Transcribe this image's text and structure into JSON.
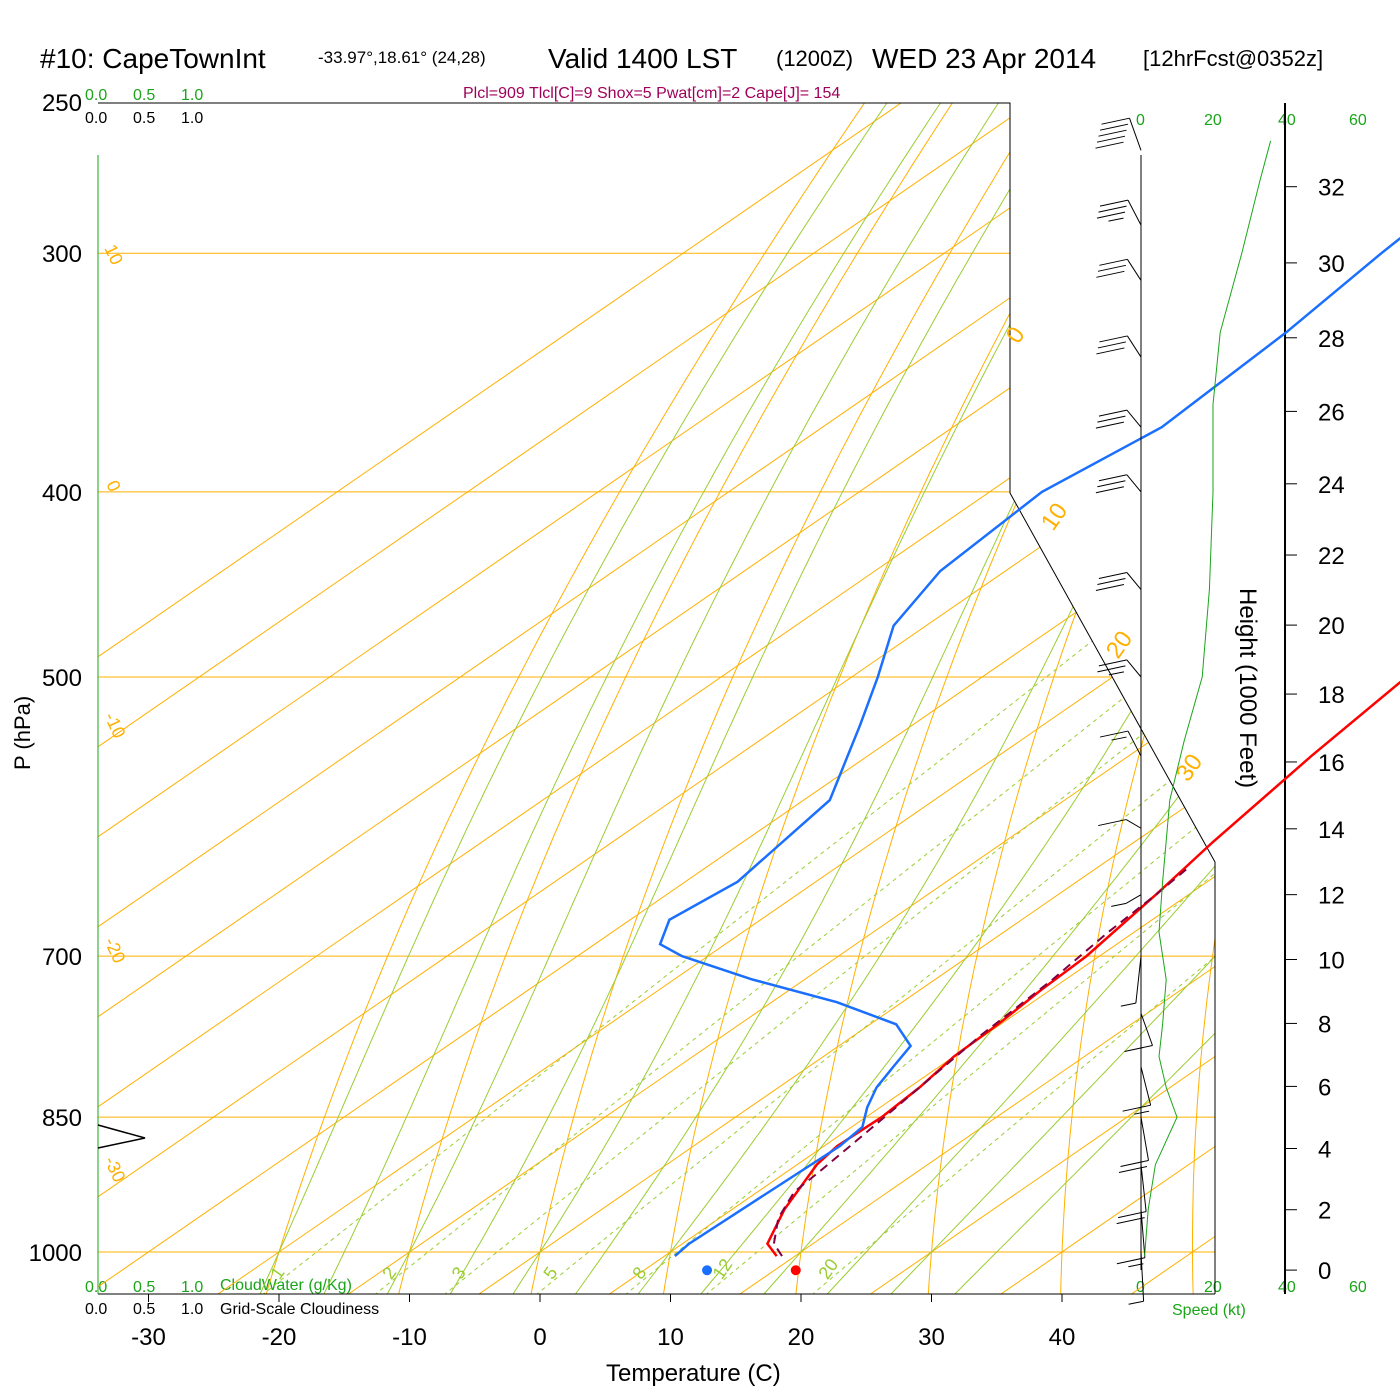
{
  "header": {
    "station": "#10: CapeTownInt",
    "coords": "-33.97°,18.61° (24,28)",
    "valid": "Valid 1400 LST",
    "utc": "(1200Z)",
    "date": "WED 23 Apr 2014",
    "forecast": "[12hrFcst@0352z]",
    "indices": "Plcl=909 Tlcl[C]=9 Shox=5 Pwat[cm]=2 Cape[J]= 154"
  },
  "cloud_scale": {
    "ticks": [
      "0.0",
      "0.5",
      "1.0"
    ],
    "cloudwater_label": "CloudWater (g/Kg)",
    "cloudiness_label": "Grid-Scale Cloudiness"
  },
  "wind_scale": {
    "ticks": [
      "0",
      "20",
      "40",
      "60"
    ],
    "label": "Speed (kt)"
  },
  "colors": {
    "temperature": "#ff0000",
    "dewpoint": "#1a6fff",
    "parcel": "#800040",
    "isotherm": "#ffb000",
    "dry_adiabat": "#ffb000",
    "moist_adiabat": "#9acd32",
    "mixing_ratio": "#9acd32",
    "indices": "#a0005a",
    "speed": "#1aa51a"
  },
  "chart_data": {
    "type": "line",
    "title": "#10: CapeTownInt Valid 1400 LST (1200Z) WED 23 Apr 2014",
    "xlabel": "Temperature (C)",
    "ylabel": "P (hPa)",
    "y2label": "Height (1000 Feet)",
    "xlim": [
      -38,
      44
    ],
    "ylim": [
      1030,
      250
    ],
    "y_scale": "log",
    "skew": "skew-T",
    "x_ticks": [
      "-30",
      "-20",
      "-10",
      "0",
      "10",
      "20",
      "30",
      "40"
    ],
    "p_ticks": [
      "250",
      "300",
      "400",
      "500",
      "700",
      "850",
      "1000"
    ],
    "p_tick_values": [
      250,
      300,
      400,
      500,
      700,
      850,
      1000
    ],
    "height_ticks": [
      "0",
      "2",
      "4",
      "6",
      "8",
      "10",
      "12",
      "14",
      "16",
      "18",
      "20",
      "22",
      "24",
      "26",
      "28",
      "30",
      "32"
    ],
    "isotherm_labels": [
      "10",
      "0",
      "-10",
      "-20",
      "-30",
      "0",
      "10",
      "20",
      "30"
    ],
    "mixing_ratio_labels": [
      "1",
      "2",
      "3",
      "5",
      "8",
      "12",
      "20"
    ],
    "mixing_ratio_values": [
      1,
      2,
      3,
      5,
      8,
      12,
      20
    ],
    "series": [
      {
        "name": "Temperature",
        "points": [
          [
            18.6,
            1005
          ],
          [
            16.5,
            990
          ],
          [
            14,
            950
          ],
          [
            11.5,
            900
          ],
          [
            11,
            880
          ],
          [
            11.2,
            850
          ],
          [
            10.8,
            820
          ],
          [
            10,
            790
          ],
          [
            9.8,
            760
          ],
          [
            9.3,
            730
          ],
          [
            9,
            700
          ],
          [
            7.5,
            650
          ],
          [
            6,
            610
          ],
          [
            4,
            550
          ],
          [
            2.5,
            500
          ],
          [
            0.5,
            450
          ],
          [
            -2,
            400
          ],
          [
            -6.5,
            350
          ],
          [
            -11,
            300
          ],
          [
            -14.5,
            265
          ]
        ]
      },
      {
        "name": "Dewpoint",
        "points": [
          [
            10.8,
            1005
          ],
          [
            10.5,
            990
          ],
          [
            10.8,
            940
          ],
          [
            11.2,
            880
          ],
          [
            10.8,
            860
          ],
          [
            9,
            840
          ],
          [
            7.5,
            820
          ],
          [
            6.5,
            800
          ],
          [
            5.5,
            780
          ],
          [
            2,
            760
          ],
          [
            -5,
            740
          ],
          [
            -14,
            720
          ],
          [
            -22,
            700
          ],
          [
            -25,
            690
          ],
          [
            -27,
            670
          ],
          [
            -26,
            640
          ],
          [
            -28,
            580
          ],
          [
            -34,
            530
          ],
          [
            -38,
            500
          ],
          [
            -42.5,
            470
          ],
          [
            -45,
            440
          ],
          [
            -46,
            400
          ],
          [
            -44,
            370
          ],
          [
            -45,
            330
          ],
          [
            -46.5,
            300
          ],
          [
            -48,
            265
          ]
        ]
      },
      {
        "name": "Parcel",
        "points": [
          [
            19,
            1005
          ],
          [
            17,
            990
          ],
          [
            14.5,
            960
          ],
          [
            12.8,
            930
          ],
          [
            12.5,
            909
          ],
          [
            11.8,
            870
          ],
          [
            10.8,
            820
          ],
          [
            9.7,
            770
          ],
          [
            9,
            720
          ],
          [
            8.5,
            700
          ],
          [
            8,
            680
          ],
          [
            7.5,
            650
          ],
          [
            7,
            630
          ]
        ]
      }
    ],
    "surface": {
      "temperature": 19.6,
      "dewpoint": 12.8
    },
    "isotherm_values": [
      -100,
      -90,
      -80,
      -70,
      -60,
      -50,
      -40,
      -30,
      -20,
      -10,
      0,
      10,
      20,
      30,
      40,
      50
    ],
    "dry_adiabat_thetas": [
      -20,
      -10,
      0,
      10,
      20,
      30,
      40,
      50,
      60,
      70,
      80,
      90,
      100,
      110,
      120,
      130,
      140,
      150,
      160,
      170
    ],
    "moist_adiabat_bases": [
      -20,
      -15,
      -10,
      -5,
      0,
      5,
      10,
      15,
      20,
      25,
      30,
      35
    ],
    "winds": [
      {
        "p": 1000,
        "speed": 5,
        "dir": 170
      },
      {
        "p": 950,
        "speed": 15,
        "dir": 165
      },
      {
        "p": 900,
        "speed": 20,
        "dir": 160
      },
      {
        "p": 850,
        "speed": 20,
        "dir": 150
      },
      {
        "p": 800,
        "speed": 15,
        "dir": 140
      },
      {
        "p": 750,
        "speed": 10,
        "dir": 130
      },
      {
        "p": 700,
        "speed": 5,
        "dir": 200
      },
      {
        "p": 650,
        "speed": 5,
        "dir": 260
      },
      {
        "p": 600,
        "speed": 10,
        "dir": 280
      },
      {
        "p": 550,
        "speed": 15,
        "dir": 300
      },
      {
        "p": 500,
        "speed": 25,
        "dir": 290
      },
      {
        "p": 450,
        "speed": 30,
        "dir": 290
      },
      {
        "p": 400,
        "speed": 30,
        "dir": 290
      },
      {
        "p": 370,
        "speed": 30,
        "dir": 290
      },
      {
        "p": 340,
        "speed": 30,
        "dir": 295
      },
      {
        "p": 310,
        "speed": 30,
        "dir": 295
      },
      {
        "p": 290,
        "speed": 35,
        "dir": 300
      },
      {
        "p": 265,
        "speed": 50,
        "dir": 310
      }
    ],
    "speed_profile": [
      [
        1,
        1005
      ],
      [
        2,
        950
      ],
      [
        4,
        900
      ],
      [
        10,
        850
      ],
      [
        7,
        820
      ],
      [
        5,
        790
      ],
      [
        6,
        760
      ],
      [
        7,
        720
      ],
      [
        5,
        680
      ],
      [
        6,
        640
      ],
      [
        8,
        580
      ],
      [
        12,
        540
      ],
      [
        17,
        500
      ],
      [
        19,
        450
      ],
      [
        20,
        400
      ],
      [
        20,
        360
      ],
      [
        22,
        330
      ],
      [
        28,
        300
      ],
      [
        33,
        275
      ],
      [
        36,
        262
      ]
    ]
  }
}
